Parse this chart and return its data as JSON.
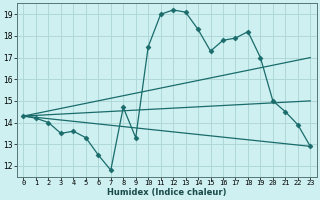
{
  "title": "",
  "xlabel": "Humidex (Indice chaleur)",
  "ylabel": "",
  "bg_color": "#cef0f0",
  "grid_color": "#b0d8d8",
  "line_color": "#1a6b6b",
  "xlim": [
    -0.5,
    23.5
  ],
  "ylim": [
    11.5,
    19.5
  ],
  "xticks": [
    0,
    1,
    2,
    3,
    4,
    5,
    6,
    7,
    8,
    9,
    10,
    11,
    12,
    13,
    14,
    15,
    16,
    17,
    18,
    19,
    20,
    21,
    22,
    23
  ],
  "yticks": [
    12,
    13,
    14,
    15,
    16,
    17,
    18,
    19
  ],
  "series": [
    {
      "x": [
        0,
        1,
        2,
        3,
        4,
        5,
        6,
        7,
        8,
        9,
        10,
        11,
        12,
        13,
        14,
        15,
        16,
        17,
        18,
        19,
        20,
        21,
        22,
        23
      ],
      "y": [
        14.3,
        14.2,
        14.0,
        13.5,
        13.6,
        13.3,
        12.5,
        11.8,
        14.7,
        13.3,
        17.5,
        19.0,
        19.2,
        19.1,
        18.3,
        17.3,
        17.8,
        17.9,
        18.2,
        17.0,
        15.0,
        14.5,
        13.9,
        12.9
      ],
      "marker": "D",
      "markersize": 2.5
    },
    {
      "x": [
        0,
        23
      ],
      "y": [
        14.3,
        17.0
      ],
      "marker": null
    },
    {
      "x": [
        0,
        23
      ],
      "y": [
        14.3,
        15.0
      ],
      "marker": null
    },
    {
      "x": [
        0,
        23
      ],
      "y": [
        14.3,
        12.9
      ],
      "marker": null
    }
  ]
}
